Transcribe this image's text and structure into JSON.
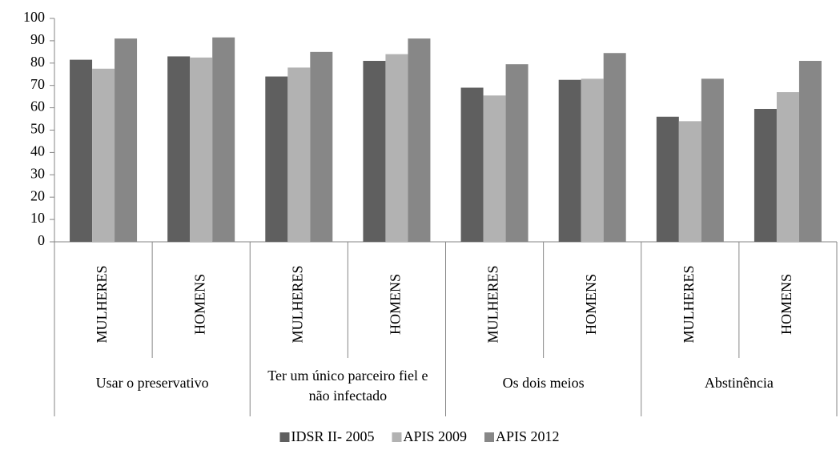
{
  "chart_data": {
    "type": "bar",
    "categories": [
      "MULHERES",
      "HOMENS",
      "MULHERES",
      "HOMENS",
      "MULHERES",
      "HOMENS",
      "MULHERES",
      "HOMENS"
    ],
    "groups": [
      "Usar o preservativo",
      "Ter um único parceiro fiel e não infectado",
      "Os dois meios",
      "Abstinência"
    ],
    "series": [
      {
        "name": "IDSR II- 2005",
        "color": "#5f5f5f",
        "values": [
          81.5,
          83,
          74,
          81,
          69,
          72.5,
          56,
          59.5
        ]
      },
      {
        "name": "APIS 2009",
        "color": "#b2b2b2",
        "values": [
          77.5,
          82.5,
          78,
          84,
          65.5,
          73,
          54,
          67
        ]
      },
      {
        "name": "APIS 2012",
        "color": "#878787",
        "values": [
          91,
          91.5,
          85,
          91,
          79.5,
          84.5,
          73,
          81
        ]
      }
    ],
    "ylim": [
      0,
      100
    ],
    "yticks": [
      0,
      10,
      20,
      30,
      40,
      50,
      60,
      70,
      80,
      90,
      100
    ],
    "grid": false,
    "legend": "bottom"
  }
}
